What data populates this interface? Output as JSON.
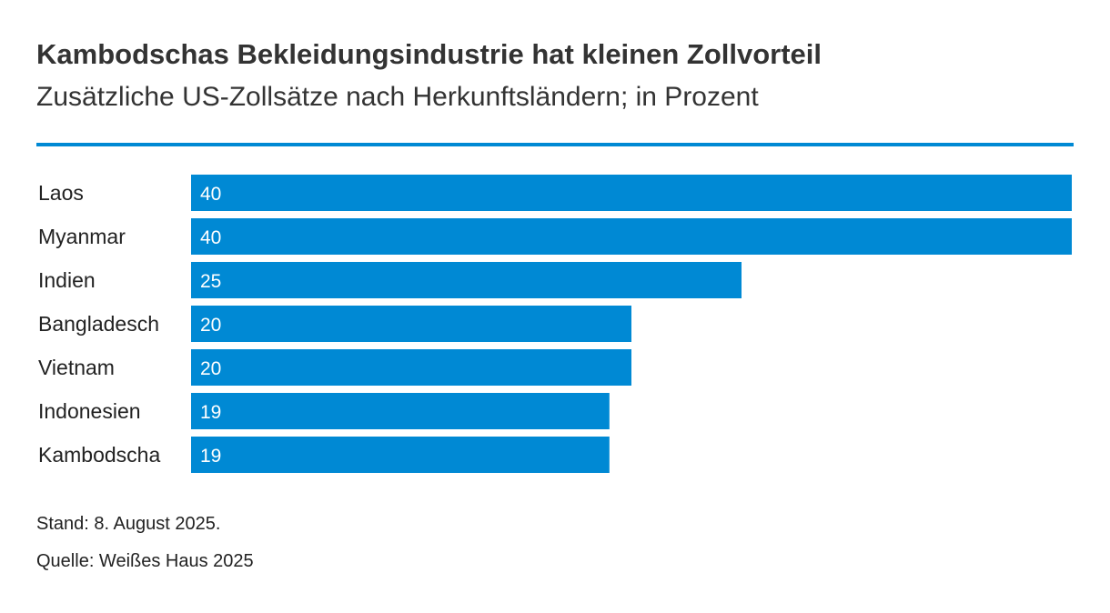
{
  "title": "Kambodschas Bekleidungsindustrie hat kleinen Zollvorteil",
  "subtitle": "Zusätzliche US-Zollsätze nach Herkunftsländern; in Prozent",
  "footnotes": {
    "stand": "Stand: 8. August 2025.",
    "source": "Quelle: Weißes Haus 2025"
  },
  "colors": {
    "bar": "#0089d4",
    "rule": "#0089d4"
  },
  "chart_data": {
    "type": "bar",
    "orientation": "horizontal",
    "title": "Kambodschas Bekleidungsindustrie hat kleinen Zollvorteil",
    "subtitle": "Zusätzliche US-Zollsätze nach Herkunftsländern; in Prozent",
    "categories": [
      "Laos",
      "Myanmar",
      "Indien",
      "Bangladesch",
      "Vietnam",
      "Indonesien",
      "Kambodscha"
    ],
    "values": [
      40,
      40,
      25,
      20,
      20,
      19,
      19
    ],
    "xlim": [
      0,
      40
    ],
    "xlabel": "",
    "ylabel": "",
    "grid": false,
    "legend": "none",
    "data_labels": "inside-left"
  }
}
